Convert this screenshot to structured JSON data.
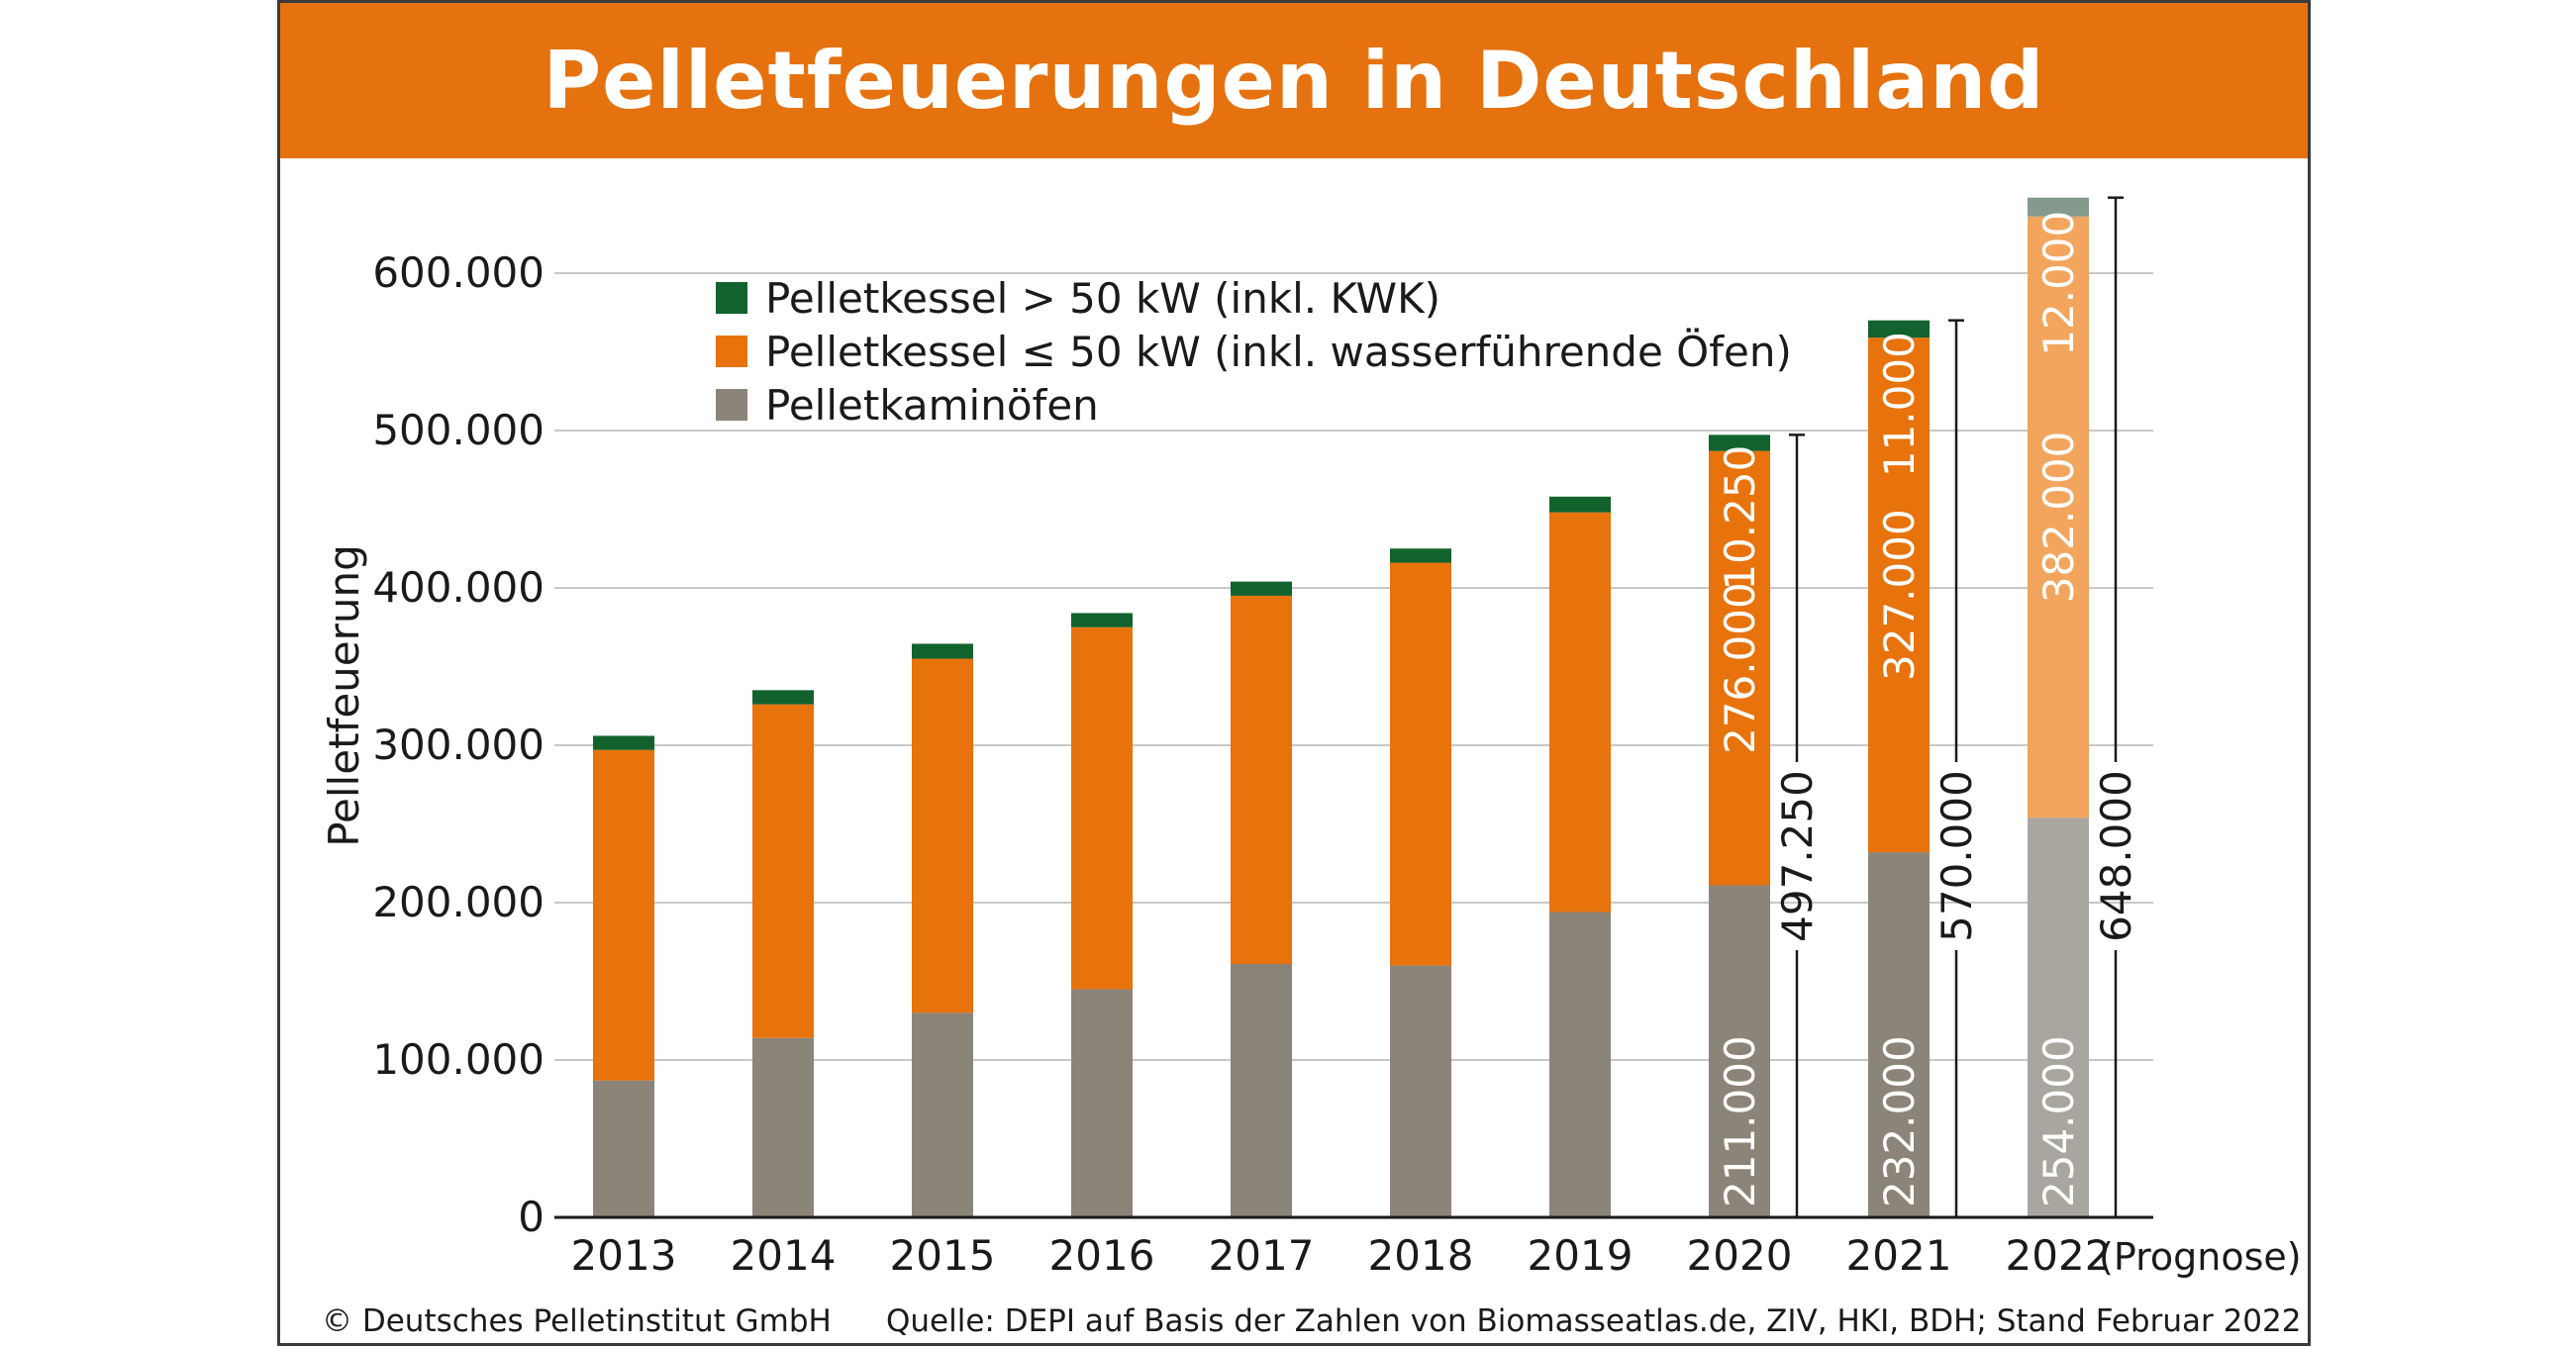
{
  "chart_data": {
    "type": "bar",
    "stacked": true,
    "title": "Pelletfeuerungen in Deutschland",
    "ylabel": "Pelletfeuerung",
    "xlabel": "",
    "ylim": [
      0,
      650000
    ],
    "yticks": [
      0,
      100000,
      200000,
      300000,
      400000,
      500000,
      600000
    ],
    "ytick_labels": [
      "0",
      "100.000",
      "200.000",
      "300.000",
      "400.000",
      "500.000",
      "600.000"
    ],
    "categories": [
      "2013",
      "2014",
      "2015",
      "2016",
      "2017",
      "2018",
      "2019",
      "2020",
      "2021",
      "2022"
    ],
    "forecast_note": "(Prognose)",
    "grid": true,
    "legend_position": "top-left",
    "series": [
      {
        "name": "Pelletkaminöfen",
        "color": "#8b8478",
        "forecast_color": "#a9a69f",
        "values": [
          87000,
          114000,
          130000,
          145000,
          161000,
          160000,
          194000,
          211000,
          232000,
          254000
        ]
      },
      {
        "name": "Pelletkessel ≤ 50 kW (inkl. wasserführende Öfen)",
        "color": "#e8720c",
        "forecast_color": "#f3a55e",
        "values": [
          210000,
          212000,
          225000,
          230000,
          234000,
          256000,
          254000,
          276000,
          327000,
          382000
        ]
      },
      {
        "name": "Pelletkessel > 50 kW (inkl. KWK)",
        "color": "#12622d",
        "forecast_color": "#849a8c",
        "values": [
          9000,
          9000,
          9500,
          9000,
          9000,
          9000,
          10000,
          10250,
          11000,
          12000
        ]
      }
    ],
    "segment_labels": {
      "2020": [
        "211.000",
        "276.000",
        "10.250"
      ],
      "2021": [
        "232.000",
        "327.000",
        "11.000"
      ],
      "2022": [
        "254.000",
        "382.000",
        "12.000"
      ]
    },
    "totals": [
      {
        "category": "2020",
        "value": 497250,
        "label": "497.250"
      },
      {
        "category": "2021",
        "value": 570000,
        "label": "570.000"
      },
      {
        "category": "2022",
        "value": 648000,
        "label": "648.000"
      }
    ],
    "legend_order": [
      2,
      1,
      0
    ]
  },
  "footer": {
    "copyright": "© Deutsches Pelletinstitut GmbH",
    "source": "Quelle: DEPI auf Basis der Zahlen von Biomasseatlas.de, ZIV, HKI, BDH; Stand Februar 2022"
  }
}
